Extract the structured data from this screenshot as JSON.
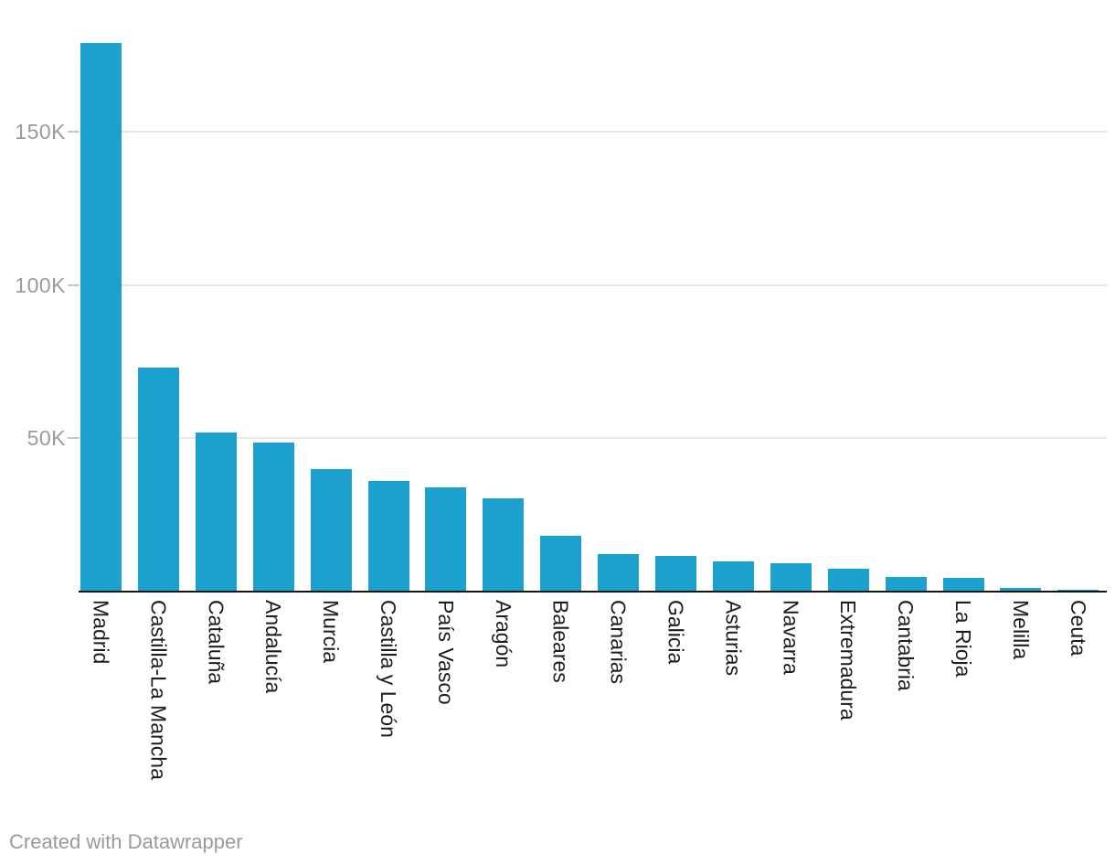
{
  "chart_data": {
    "type": "bar",
    "title": "",
    "xlabel": "",
    "ylabel": "",
    "categories": [
      "Madrid",
      "Castilla-La Mancha",
      "Cataluña",
      "Andalucía",
      "Murcia",
      "Castilla y León",
      "País Vasco",
      "Aragón",
      "Baleares",
      "Canarias",
      "Galicia",
      "Asturias",
      "Navarra",
      "Extremadura",
      "Cantabria",
      "La Rioja",
      "Melilla",
      "Ceuta"
    ],
    "values": [
      179000,
      73200,
      52000,
      48700,
      39900,
      36100,
      34100,
      30400,
      18200,
      12100,
      11500,
      10000,
      9200,
      7500,
      4800,
      4500,
      1100,
      700
    ],
    "ylim": [
      0,
      180000
    ],
    "y_ticks": [
      {
        "value": 50000,
        "label": "50K"
      },
      {
        "value": 100000,
        "label": "100K"
      },
      {
        "value": 150000,
        "label": "150K"
      }
    ],
    "grid": "horizontal",
    "legend": "none",
    "bar_color": "#1ca0ce"
  },
  "colors": {
    "bar": "#1ca0ce",
    "axis_line": "#131313",
    "gridline": "#e9e9e9",
    "tick_dash": "#c5c5c5",
    "y_label": "#9b9b9b",
    "x_label": "#1d1d1d",
    "footer_text": "#9a9a9a",
    "background": "#ffffff"
  },
  "footer": {
    "text": "Created with Datawrapper"
  }
}
